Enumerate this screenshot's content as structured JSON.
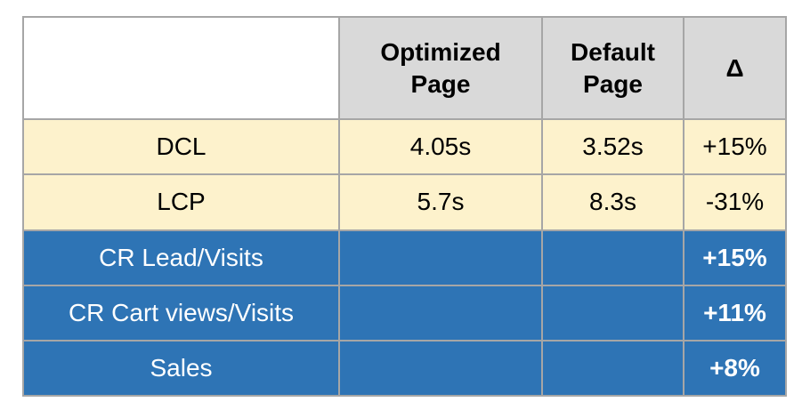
{
  "colors": {
    "header_bg": "#d9d9d9",
    "cream_row_bg": "#fdf2cc",
    "blue_row_bg": "#2e74b5",
    "border": "#a6a6a6",
    "blue_row_text": "#ffffff",
    "body_text": "#000000"
  },
  "table": {
    "header": {
      "label": "",
      "optimized": "Optimized Page",
      "default": "Default Page",
      "delta": "Δ"
    },
    "rows": [
      {
        "label": "DCL",
        "optimized": "4.05s",
        "default": "3.52s",
        "delta": "+15%",
        "style": "cream"
      },
      {
        "label": "LCP",
        "optimized": "5.7s",
        "default": "8.3s",
        "delta": "-31%",
        "style": "cream"
      },
      {
        "label": "CR Lead/Visits",
        "optimized": "",
        "default": "",
        "delta": "+15%",
        "style": "blue"
      },
      {
        "label": "CR Cart views/Visits",
        "optimized": "",
        "default": "",
        "delta": "+11%",
        "style": "blue"
      },
      {
        "label": "Sales",
        "optimized": "",
        "default": "",
        "delta": "+8%",
        "style": "blue"
      }
    ]
  }
}
